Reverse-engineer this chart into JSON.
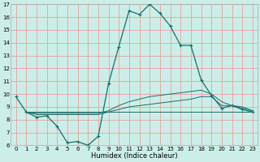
{
  "xlabel": "Humidex (Indice chaleur)",
  "bg_color": "#cceee8",
  "grid_color": "#e8a0a0",
  "line_color": "#1a6e6a",
  "xlim": [
    -0.5,
    23.5
  ],
  "ylim": [
    6,
    17
  ],
  "yticks": [
    6,
    7,
    8,
    9,
    10,
    11,
    12,
    13,
    14,
    15,
    16,
    17
  ],
  "xticks": [
    0,
    1,
    2,
    3,
    4,
    5,
    6,
    7,
    8,
    9,
    10,
    11,
    12,
    13,
    14,
    15,
    16,
    17,
    18,
    19,
    20,
    21,
    22,
    23
  ],
  "main_x": [
    0,
    1,
    2,
    3,
    4,
    5,
    6,
    7,
    8,
    9,
    10,
    11,
    12,
    13,
    14,
    15,
    16,
    17,
    18,
    19,
    20,
    21,
    22,
    23
  ],
  "main_y": [
    9.8,
    8.6,
    8.2,
    8.3,
    7.5,
    6.2,
    6.3,
    6.0,
    6.7,
    10.8,
    13.7,
    16.5,
    16.2,
    17.0,
    16.3,
    15.3,
    13.8,
    13.8,
    11.1,
    9.9,
    8.9,
    9.1,
    8.8,
    8.6
  ],
  "flat_x": [
    1,
    2,
    3,
    4,
    5,
    6,
    7,
    8,
    9,
    10,
    11,
    12,
    13,
    14,
    15,
    16,
    17,
    18,
    19,
    20,
    21,
    22,
    23
  ],
  "flat_y": [
    8.6,
    8.6,
    8.6,
    8.6,
    8.6,
    8.6,
    8.6,
    8.6,
    8.6,
    8.6,
    8.6,
    8.6,
    8.6,
    8.6,
    8.6,
    8.6,
    8.6,
    8.6,
    8.6,
    8.6,
    8.6,
    8.6,
    8.6
  ],
  "rise1_x": [
    1,
    2,
    3,
    4,
    5,
    6,
    7,
    8,
    9,
    10,
    11,
    12,
    13,
    14,
    15,
    16,
    17,
    18,
    19,
    20,
    21,
    22,
    23
  ],
  "rise1_y": [
    8.6,
    8.5,
    8.5,
    8.5,
    8.5,
    8.5,
    8.5,
    8.5,
    8.7,
    9.1,
    9.4,
    9.6,
    9.8,
    9.9,
    10.0,
    10.1,
    10.2,
    10.3,
    10.0,
    9.4,
    9.1,
    9.0,
    8.7
  ],
  "rise2_x": [
    1,
    2,
    3,
    4,
    5,
    6,
    7,
    8,
    9,
    10,
    11,
    12,
    13,
    14,
    15,
    16,
    17,
    18,
    19,
    20,
    21,
    22,
    23
  ],
  "rise2_y": [
    8.6,
    8.4,
    8.4,
    8.4,
    8.4,
    8.4,
    8.4,
    8.4,
    8.6,
    8.8,
    9.0,
    9.1,
    9.2,
    9.3,
    9.4,
    9.5,
    9.6,
    9.8,
    9.8,
    9.1,
    9.1,
    8.9,
    8.7
  ],
  "xlabel_fontsize": 6,
  "tick_fontsize": 5
}
